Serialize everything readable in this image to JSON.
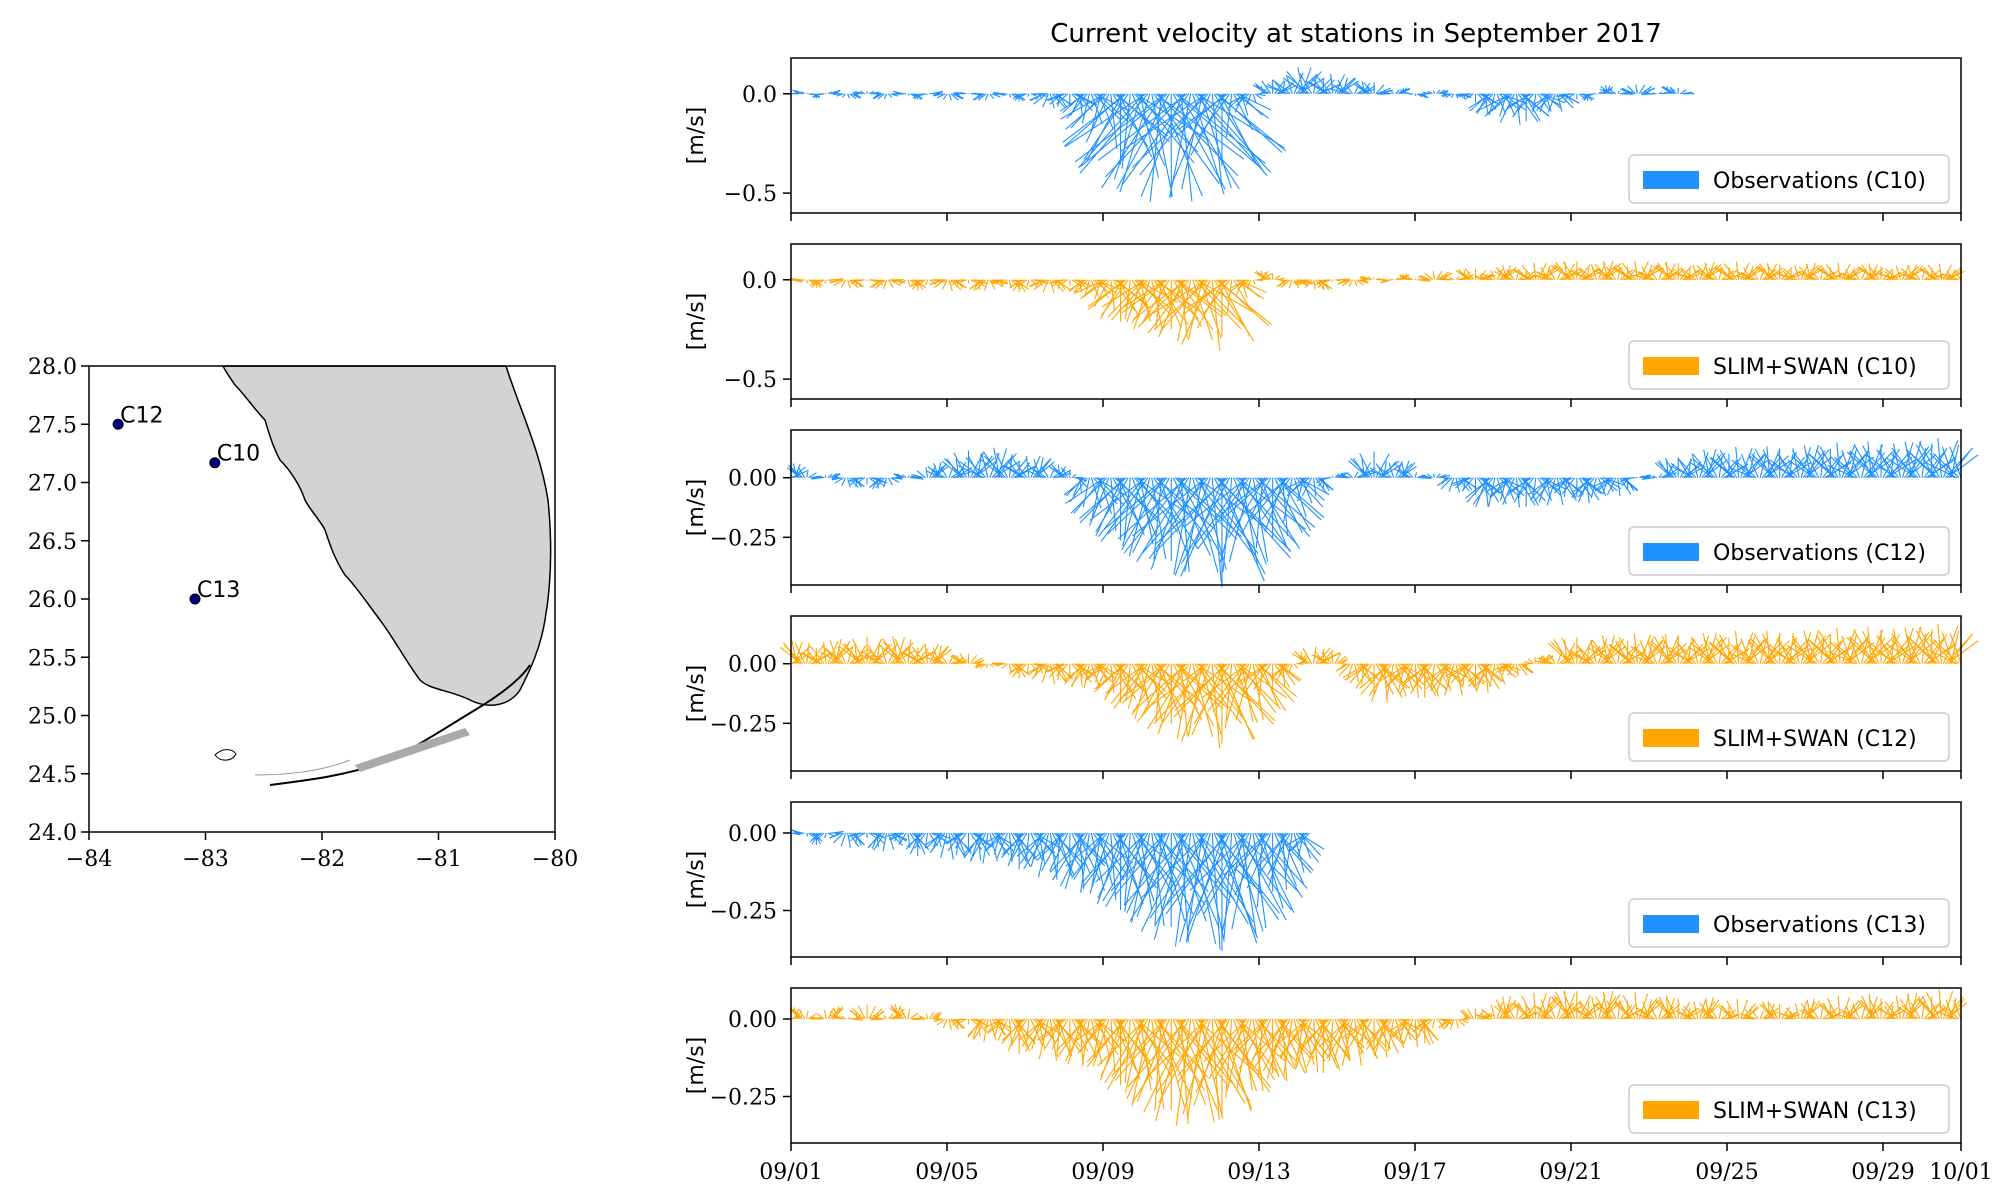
{
  "figure_title": "Current velocity at stations in September 2017",
  "colors": {
    "observations": "#1e90ff",
    "model": "#ffa500",
    "land": "#d3d3d3",
    "coast": "#000000",
    "station": "#000080"
  },
  "chart_data": [
    {
      "type": "map",
      "xlim": [
        -84,
        -80
      ],
      "ylim": [
        24.0,
        28.0
      ],
      "xticks": [
        "−84",
        "−83",
        "−82",
        "−81",
        "−80"
      ],
      "yticks": [
        "24.0",
        "24.5",
        "25.0",
        "25.5",
        "26.0",
        "26.5",
        "27.0",
        "27.5",
        "28.0"
      ],
      "stations": [
        {
          "name": "C12",
          "lon": -83.75,
          "lat": 27.5
        },
        {
          "name": "C10",
          "lon": -82.92,
          "lat": 27.17
        },
        {
          "name": "C13",
          "lon": -83.09,
          "lat": 26.0
        }
      ]
    },
    {
      "type": "quiver",
      "title": "Current velocity at stations in September 2017",
      "x_start": "09/01",
      "x_end": "10/01",
      "xticks": [
        "09/01",
        "09/05",
        "09/09",
        "09/13",
        "09/17",
        "09/21",
        "09/25",
        "09/29",
        "10/01"
      ],
      "xtick_days": [
        0,
        4,
        8,
        12,
        16,
        20,
        24,
        28,
        30
      ],
      "ylabel": "[m/s]",
      "panels": [
        {
          "legend": "Observations (C10)",
          "color": "#1e90ff",
          "ylim": [
            -0.6,
            0.18
          ],
          "yticks": [
            "0.0",
            "−0.5"
          ],
          "ytick_values": [
            0,
            -0.5
          ],
          "end_day": 22.9,
          "trend": [
            [
              0,
              0
            ],
            [
              6,
              -0.02
            ],
            [
              7.5,
              -0.1
            ],
            [
              8.5,
              -0.35
            ],
            [
              9.5,
              -0.55
            ],
            [
              10.7,
              -0.5
            ],
            [
              11.6,
              -0.1
            ],
            [
              12,
              0.02
            ],
            [
              13,
              0.12
            ],
            [
              14.5,
              0.06
            ],
            [
              16,
              0.0
            ],
            [
              17,
              0.0
            ],
            [
              18.5,
              -0.15
            ],
            [
              20,
              -0.05
            ],
            [
              21,
              0.03
            ],
            [
              22.9,
              0.02
            ]
          ]
        },
        {
          "legend": "SLIM+SWAN (C10)",
          "color": "#ffa500",
          "ylim": [
            -0.6,
            0.18
          ],
          "yticks": [
            "0.0",
            "−0.5"
          ],
          "ytick_values": [
            0,
            -0.5
          ],
          "end_day": 30,
          "trend": [
            [
              0,
              -0.02
            ],
            [
              7.5,
              -0.05
            ],
            [
              8.5,
              -0.2
            ],
            [
              10,
              -0.28
            ],
            [
              10.8,
              -0.35
            ],
            [
              11.5,
              -0.12
            ],
            [
              12,
              0.05
            ],
            [
              13,
              -0.05
            ],
            [
              15,
              0.0
            ],
            [
              18,
              0.05
            ],
            [
              20,
              0.08
            ],
            [
              30,
              0.06
            ]
          ]
        },
        {
          "legend": "Observations (C12)",
          "color": "#1e90ff",
          "ylim": [
            -0.45,
            0.2
          ],
          "yticks": [
            "0.00",
            "−0.25"
          ],
          "ytick_values": [
            0,
            -0.25
          ],
          "end_day": 30,
          "trend": [
            [
              0,
              0.05
            ],
            [
              2,
              -0.05
            ],
            [
              5,
              0.12
            ],
            [
              7,
              0.05
            ],
            [
              8,
              -0.2
            ],
            [
              9.5,
              -0.35
            ],
            [
              11,
              -0.45
            ],
            [
              12.5,
              -0.25
            ],
            [
              13.5,
              -0.05
            ],
            [
              15,
              0.1
            ],
            [
              16.5,
              0.0
            ],
            [
              18,
              -0.12
            ],
            [
              21,
              -0.08
            ],
            [
              23,
              0.1
            ],
            [
              30,
              0.15
            ]
          ]
        },
        {
          "legend": "SLIM+SWAN (C12)",
          "color": "#ffa500",
          "ylim": [
            -0.45,
            0.2
          ],
          "yticks": [
            "0.00",
            "−0.25"
          ],
          "ytick_values": [
            0,
            -0.25
          ],
          "end_day": 30,
          "trend": [
            [
              0,
              0.08
            ],
            [
              3,
              0.1
            ],
            [
              6,
              -0.05
            ],
            [
              8,
              -0.1
            ],
            [
              9.5,
              -0.25
            ],
            [
              10.8,
              -0.35
            ],
            [
              12,
              -0.2
            ],
            [
              13.5,
              0.1
            ],
            [
              15,
              -0.15
            ],
            [
              18,
              -0.1
            ],
            [
              20,
              0.1
            ],
            [
              25,
              0.12
            ],
            [
              30,
              0.15
            ]
          ]
        },
        {
          "legend": "Observations (C13)",
          "color": "#1e90ff",
          "ylim": [
            -0.4,
            0.1
          ],
          "yticks": [
            "0.00",
            "−0.25"
          ],
          "ytick_values": [
            0,
            -0.25
          ],
          "end_day": 13.3,
          "trend": [
            [
              0,
              -0.01
            ],
            [
              3,
              -0.05
            ],
            [
              6,
              -0.1
            ],
            [
              8,
              -0.2
            ],
            [
              9.5,
              -0.3
            ],
            [
              10.5,
              -0.38
            ],
            [
              11.5,
              -0.35
            ],
            [
              12.5,
              -0.18
            ],
            [
              13.3,
              -0.08
            ]
          ]
        },
        {
          "legend": "SLIM+SWAN (C13)",
          "color": "#ffa500",
          "ylim": [
            -0.4,
            0.1
          ],
          "yticks": [
            "0.00",
            "−0.25"
          ],
          "ytick_values": [
            0,
            -0.25
          ],
          "end_day": 30,
          "trend": [
            [
              0,
              0.02
            ],
            [
              3,
              0.03
            ],
            [
              6,
              -0.1
            ],
            [
              8,
              -0.15
            ],
            [
              9.5,
              -0.3
            ],
            [
              10.5,
              -0.35
            ],
            [
              12,
              -0.2
            ],
            [
              14,
              -0.15
            ],
            [
              16,
              -0.08
            ],
            [
              18,
              0.05
            ],
            [
              20,
              0.08
            ],
            [
              25,
              0.04
            ],
            [
              30,
              0.08
            ]
          ]
        }
      ]
    }
  ]
}
